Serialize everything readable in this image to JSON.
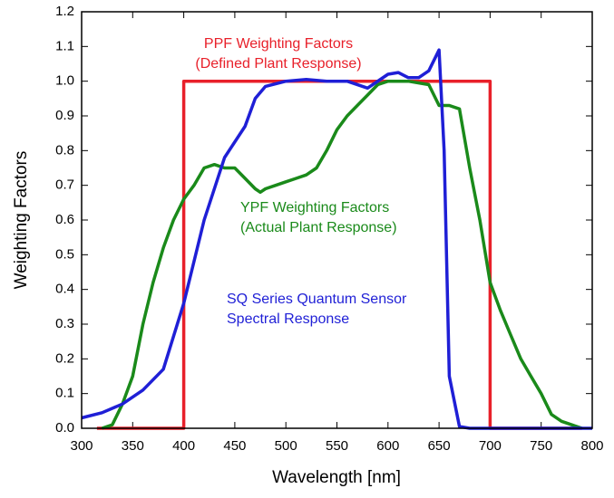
{
  "chart_data": {
    "type": "line",
    "xlabel": "Wavelength [nm]",
    "ylabel": "Weighting Factors",
    "xlim": [
      300,
      800
    ],
    "xticks": [
      300,
      350,
      400,
      450,
      500,
      550,
      600,
      650,
      700,
      750,
      800
    ],
    "ylim": [
      0,
      1.2
    ],
    "yticks": [
      {
        "value": 0,
        "label": "0.0"
      },
      0.1,
      0.2,
      0.3,
      0.4,
      0.5,
      0.6,
      0.7,
      0.8,
      0.9,
      {
        "value": 1,
        "label": "1.0"
      },
      1.1,
      1.2
    ],
    "grid": false,
    "series": [
      {
        "name": "PPF Weighting Factors",
        "description": "(Defined Plant Response)",
        "color": "#e8202a",
        "x": [
          315,
          400,
          400,
          700,
          700,
          790
        ],
        "values": [
          0,
          0,
          1,
          1,
          0,
          0
        ]
      },
      {
        "name": "YPF Weighting Factors",
        "description": "(Actual Plant Response)",
        "color": "#1a8a1a",
        "x": [
          320,
          330,
          340,
          350,
          360,
          370,
          380,
          390,
          400,
          410,
          420,
          430,
          440,
          450,
          460,
          470,
          475,
          480,
          490,
          500,
          510,
          520,
          530,
          540,
          550,
          560,
          570,
          580,
          590,
          600,
          620,
          640,
          650,
          660,
          670,
          680,
          690,
          700,
          710,
          720,
          730,
          740,
          750,
          760,
          770,
          780,
          790
        ],
        "values": [
          0,
          0.01,
          0.07,
          0.15,
          0.3,
          0.42,
          0.52,
          0.6,
          0.66,
          0.7,
          0.75,
          0.76,
          0.75,
          0.75,
          0.72,
          0.69,
          0.68,
          0.69,
          0.7,
          0.71,
          0.72,
          0.73,
          0.75,
          0.8,
          0.86,
          0.9,
          0.93,
          0.96,
          0.99,
          1.0,
          1.0,
          0.99,
          0.93,
          0.93,
          0.92,
          0.75,
          0.6,
          0.42,
          0.34,
          0.27,
          0.2,
          0.15,
          0.1,
          0.04,
          0.02,
          0.01,
          0
        ]
      },
      {
        "name": "SQ Series Quantum Sensor",
        "description": "Spectral Response",
        "color": "#1f1fd6",
        "x": [
          300,
          320,
          340,
          360,
          380,
          400,
          420,
          440,
          460,
          470,
          480,
          500,
          520,
          540,
          560,
          580,
          600,
          610,
          620,
          630,
          640,
          650,
          655,
          660,
          670,
          680,
          800
        ],
        "values": [
          0.03,
          0.045,
          0.07,
          0.11,
          0.17,
          0.36,
          0.6,
          0.78,
          0.87,
          0.95,
          0.985,
          1.0,
          1.005,
          1.0,
          1.0,
          0.98,
          1.02,
          1.025,
          1.01,
          1.01,
          1.03,
          1.09,
          0.8,
          0.15,
          0.005,
          0,
          0
        ]
      }
    ]
  }
}
